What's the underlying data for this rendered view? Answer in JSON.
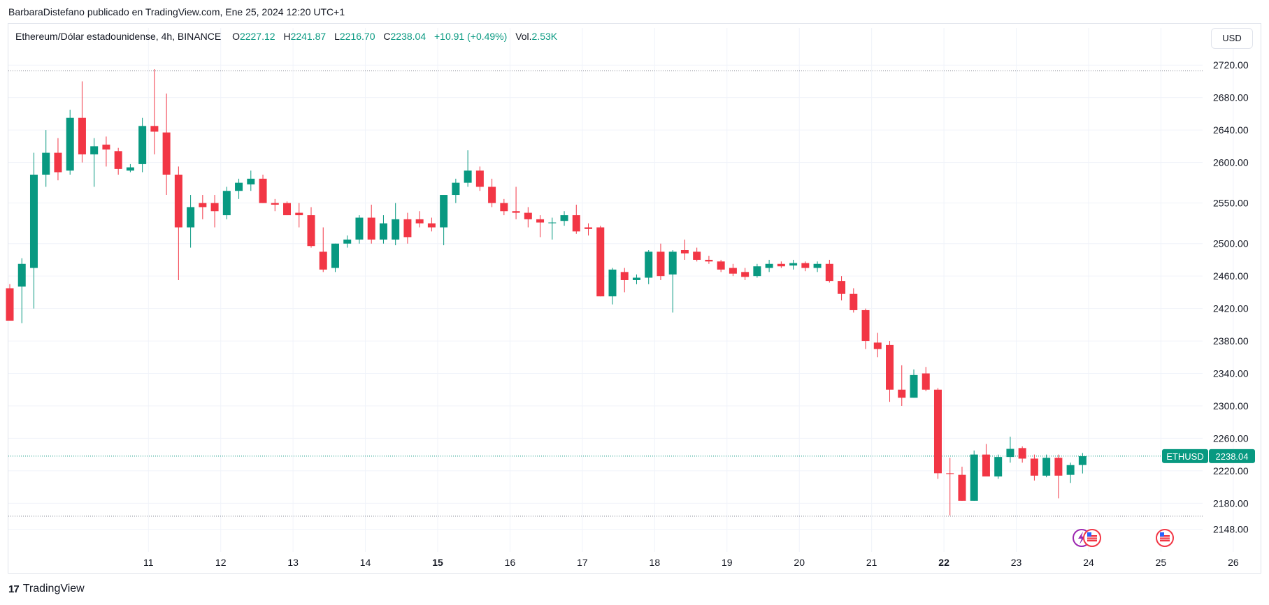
{
  "header": {
    "publisher_line": "BarbaraDistefano publicado en TradingView.com, Ene 25, 2024 12:20 UTC+1"
  },
  "legend": {
    "symbol": "Ethereum/Dólar estadounidense, 4h, BINANCE",
    "o_label": "O",
    "o_value": "2227.12",
    "h_label": "H",
    "h_value": "2241.87",
    "l_label": "L",
    "l_value": "2216.70",
    "c_label": "C",
    "c_value": "2238.04",
    "change": "+10.91 (+0.49%)",
    "vol_label": "Vol.",
    "vol_value": "2.53K"
  },
  "currency_button": "USD",
  "footer": {
    "logo_mark": "17",
    "brand": "TradingView"
  },
  "colors": {
    "up": "#089981",
    "down": "#f23645",
    "grid": "#f0f3fa",
    "text": "#131722"
  },
  "chart_data": {
    "type": "candlestick",
    "title": "Ethereum/Dólar estadounidense, 4h, BINANCE",
    "ylim": [
      2120,
      2740
    ],
    "y_ticks": [
      2148,
      2180,
      2220,
      2260,
      2300,
      2340,
      2380,
      2420,
      2460,
      2500,
      2550,
      2600,
      2640,
      2680,
      2720
    ],
    "x_ticks": [
      {
        "label": "11",
        "pos": 11.5,
        "bold": false
      },
      {
        "label": "12",
        "pos": 17.5,
        "bold": false
      },
      {
        "label": "13",
        "pos": 23.5,
        "bold": false
      },
      {
        "label": "14",
        "pos": 29.5,
        "bold": false
      },
      {
        "label": "15",
        "pos": 35.5,
        "bold": true
      },
      {
        "label": "16",
        "pos": 41.5,
        "bold": false
      },
      {
        "label": "17",
        "pos": 47.5,
        "bold": false
      },
      {
        "label": "18",
        "pos": 53.5,
        "bold": false
      },
      {
        "label": "19",
        "pos": 59.5,
        "bold": false
      },
      {
        "label": "20",
        "pos": 65.5,
        "bold": false
      },
      {
        "label": "21",
        "pos": 71.5,
        "bold": false
      },
      {
        "label": "22",
        "pos": 77.5,
        "bold": true
      },
      {
        "label": "23",
        "pos": 83.5,
        "bold": false
      },
      {
        "label": "24",
        "pos": 89.5,
        "bold": false
      },
      {
        "label": "25",
        "pos": 95.5,
        "bold": false
      },
      {
        "label": "26",
        "pos": 101.5,
        "bold": false
      }
    ],
    "ref_lines": [
      2713,
      2164
    ],
    "last_price": {
      "label": "ETHUSD",
      "value": "2238.04",
      "price": 2238.04
    },
    "ohlc": [
      [
        2445,
        2450,
        2405,
        2405
      ],
      [
        2447,
        2482,
        2402,
        2475
      ],
      [
        2470,
        2612,
        2420,
        2585
      ],
      [
        2585,
        2640,
        2570,
        2612
      ],
      [
        2612,
        2630,
        2578,
        2588
      ],
      [
        2590,
        2665,
        2585,
        2655
      ],
      [
        2655,
        2700,
        2600,
        2610
      ],
      [
        2610,
        2630,
        2570,
        2620
      ],
      [
        2622,
        2632,
        2595,
        2616
      ],
      [
        2614,
        2618,
        2585,
        2592
      ],
      [
        2590,
        2598,
        2588,
        2594
      ],
      [
        2598,
        2655,
        2588,
        2645
      ],
      [
        2645,
        2715,
        2610,
        2638
      ],
      [
        2637,
        2685,
        2560,
        2585
      ],
      [
        2585,
        2595,
        2455,
        2520
      ],
      [
        2520,
        2560,
        2495,
        2545
      ],
      [
        2550,
        2560,
        2530,
        2545
      ],
      [
        2550,
        2560,
        2520,
        2540
      ],
      [
        2535,
        2570,
        2530,
        2565
      ],
      [
        2565,
        2580,
        2555,
        2575
      ],
      [
        2573,
        2590,
        2565,
        2580
      ],
      [
        2580,
        2585,
        2550,
        2550
      ],
      [
        2550,
        2555,
        2540,
        2548
      ],
      [
        2550,
        2552,
        2535,
        2535
      ],
      [
        2538,
        2550,
        2520,
        2535
      ],
      [
        2535,
        2545,
        2495,
        2497
      ],
      [
        2490,
        2520,
        2465,
        2468
      ],
      [
        2470,
        2500,
        2465,
        2500
      ],
      [
        2500,
        2510,
        2495,
        2505
      ],
      [
        2505,
        2535,
        2500,
        2532
      ],
      [
        2532,
        2548,
        2500,
        2505
      ],
      [
        2505,
        2535,
        2500,
        2525
      ],
      [
        2505,
        2550,
        2498,
        2530
      ],
      [
        2530,
        2538,
        2500,
        2508
      ],
      [
        2530,
        2540,
        2520,
        2525
      ],
      [
        2525,
        2532,
        2515,
        2520
      ],
      [
        2520,
        2560,
        2498,
        2560
      ],
      [
        2560,
        2580,
        2550,
        2575
      ],
      [
        2575,
        2615,
        2570,
        2590
      ],
      [
        2590,
        2595,
        2565,
        2570
      ],
      [
        2570,
        2580,
        2545,
        2550
      ],
      [
        2550,
        2555,
        2535,
        2540
      ],
      [
        2540,
        2570,
        2530,
        2538
      ],
      [
        2538,
        2545,
        2520,
        2530
      ],
      [
        2530,
        2535,
        2508,
        2526
      ],
      [
        2526,
        2532,
        2505,
        2526
      ],
      [
        2528,
        2540,
        2522,
        2535
      ],
      [
        2535,
        2548,
        2512,
        2515
      ],
      [
        2520,
        2525,
        2510,
        2518
      ],
      [
        2520,
        2522,
        2435,
        2435
      ],
      [
        2435,
        2470,
        2425,
        2468
      ],
      [
        2465,
        2470,
        2440,
        2455
      ],
      [
        2455,
        2462,
        2450,
        2458
      ],
      [
        2458,
        2492,
        2450,
        2490
      ],
      [
        2490,
        2500,
        2455,
        2460
      ],
      [
        2462,
        2492,
        2415,
        2490
      ],
      [
        2492,
        2505,
        2480,
        2488
      ],
      [
        2490,
        2495,
        2478,
        2480
      ],
      [
        2480,
        2485,
        2475,
        2478
      ],
      [
        2478,
        2480,
        2465,
        2468
      ],
      [
        2470,
        2475,
        2460,
        2463
      ],
      [
        2465,
        2470,
        2455,
        2459
      ],
      [
        2460,
        2475,
        2458,
        2472
      ],
      [
        2470,
        2480,
        2465,
        2475
      ],
      [
        2475,
        2478,
        2470,
        2472
      ],
      [
        2473,
        2480,
        2468,
        2476
      ],
      [
        2476,
        2478,
        2466,
        2470
      ],
      [
        2470,
        2478,
        2465,
        2475
      ],
      [
        2475,
        2480,
        2452,
        2454
      ],
      [
        2454,
        2460,
        2430,
        2438
      ],
      [
        2438,
        2445,
        2415,
        2418
      ],
      [
        2418,
        2420,
        2370,
        2380
      ],
      [
        2378,
        2390,
        2360,
        2370
      ],
      [
        2375,
        2380,
        2305,
        2320
      ],
      [
        2320,
        2350,
        2300,
        2310
      ],
      [
        2310,
        2345,
        2310,
        2338
      ],
      [
        2340,
        2348,
        2318,
        2320
      ],
      [
        2320,
        2322,
        2210,
        2217
      ],
      [
        2217,
        2236,
        2165,
        2216
      ],
      [
        2215,
        2225,
        2183,
        2183
      ],
      [
        2183,
        2245,
        2183,
        2240
      ],
      [
        2240,
        2253,
        2213,
        2213
      ],
      [
        2213,
        2240,
        2210,
        2237
      ],
      [
        2237,
        2262,
        2230,
        2247
      ],
      [
        2248,
        2250,
        2230,
        2235
      ],
      [
        2235,
        2240,
        2208,
        2214
      ],
      [
        2214,
        2240,
        2212,
        2236
      ],
      [
        2236,
        2240,
        2186,
        2214
      ],
      [
        2215,
        2230,
        2205,
        2227
      ],
      [
        2227.12,
        2241.87,
        2216.7,
        2238.04
      ]
    ]
  }
}
